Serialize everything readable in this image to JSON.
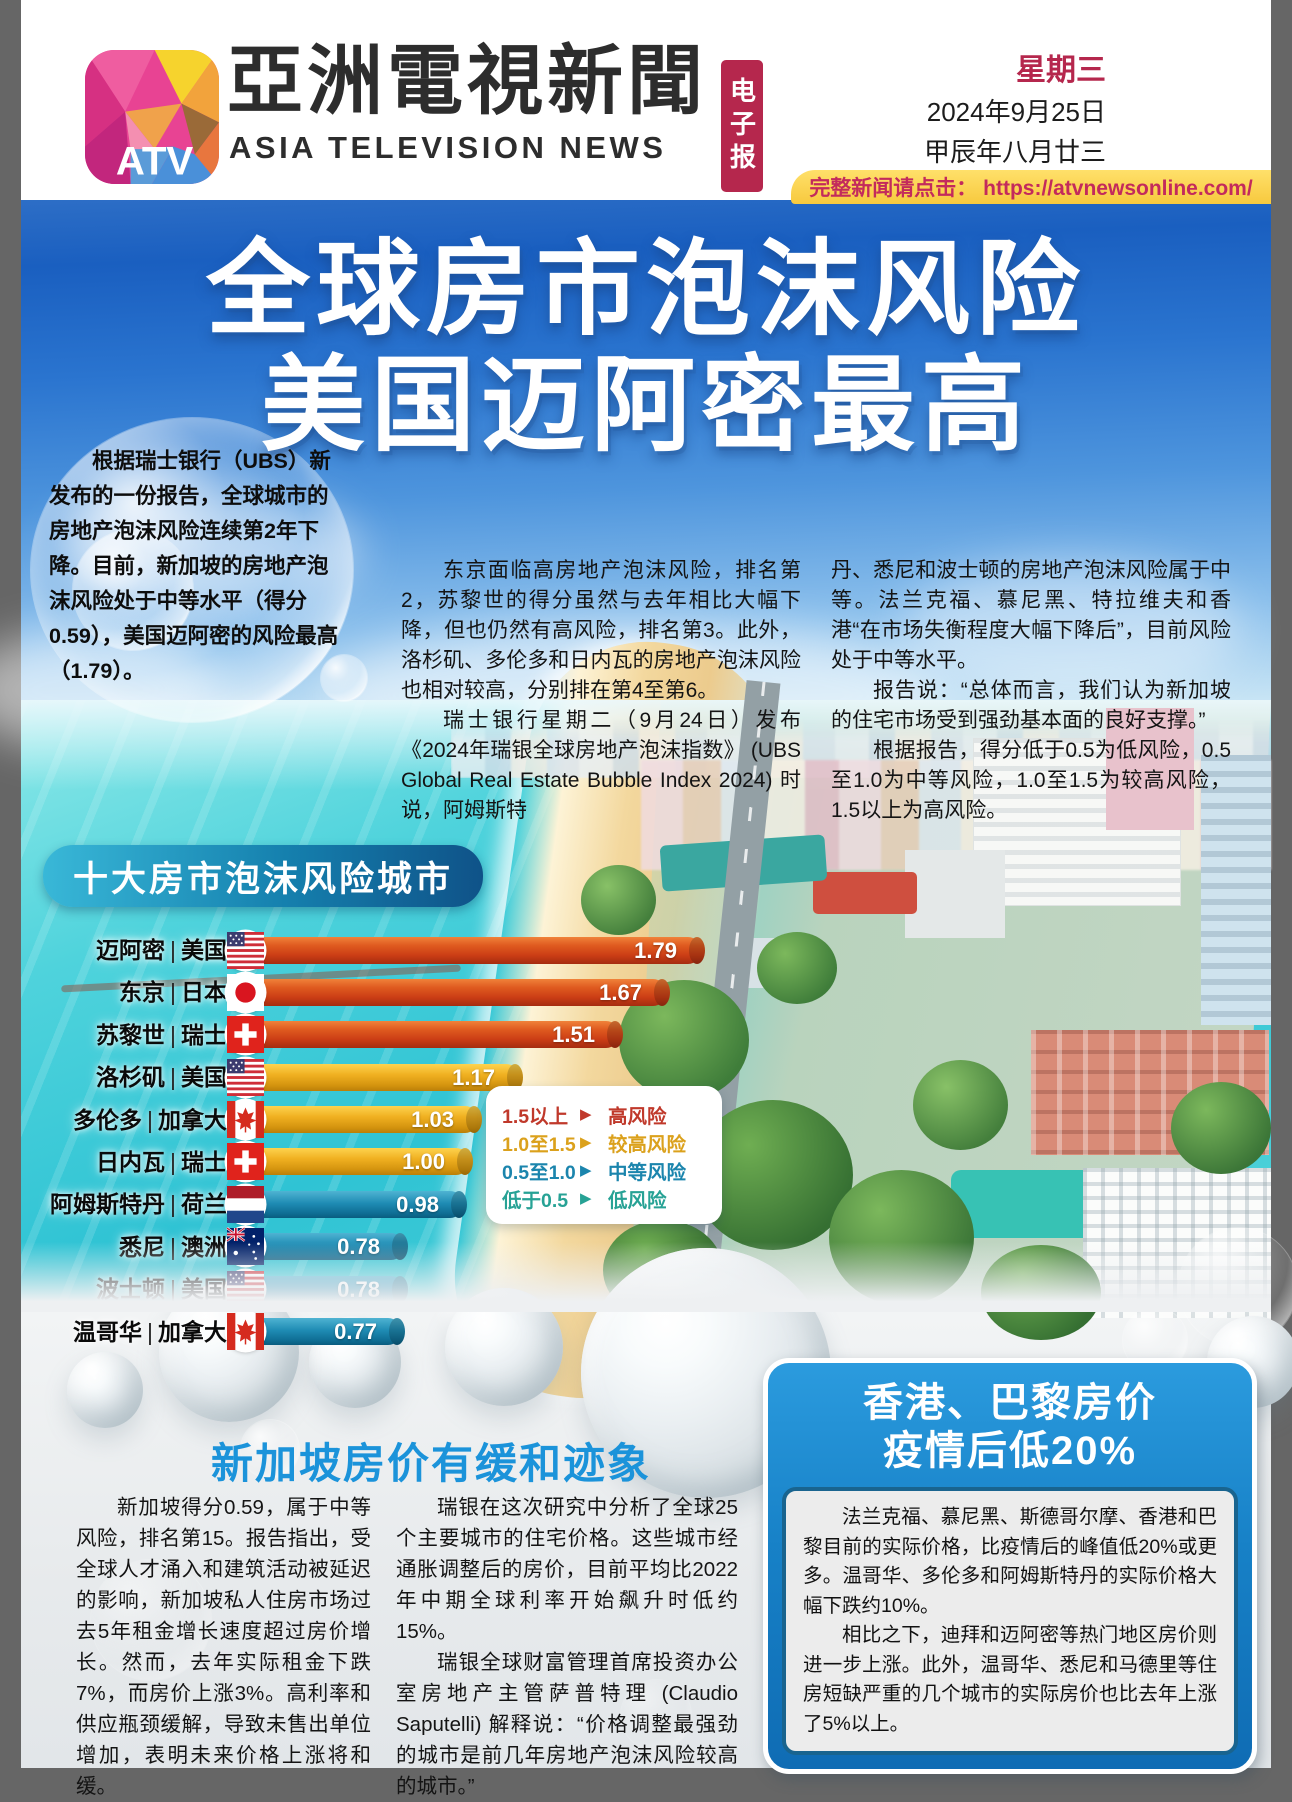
{
  "header": {
    "logo_text": "ATV",
    "title_zh": "亞洲電視新聞",
    "title_en": "ASIA TELEVISION NEWS",
    "epaper_badge": "电子报",
    "weekday": "星期三",
    "date": "2024年9月25日",
    "lunar_date": "甲辰年八月廿三",
    "link_bar": "完整新闻请点击： https://atvnewsonline.com/"
  },
  "headline": {
    "line1": "全球房市泡沫风险",
    "line2": "美国迈阿密最高"
  },
  "intro_bubble": "根据瑞士银行（UBS）新发布的一份报告，全球城市的房地产泡沫风险连续第2年下降。目前，新加坡的房地产泡沫风险处于中等水平（得分0.59），美国迈阿密的风险最高（1.79）。",
  "article1": {
    "col1": [
      "东京面临高房地产泡沫风险，排名第2，苏黎世的得分虽然与去年相比大幅下降，但也仍然有高风险，排名第3。此外，洛杉矶、多伦多和日内瓦的房地产泡沫风险也相对较高，分别排在第4至第6。",
      "瑞士银行星期二（9月24日）发布《2024年瑞银全球房地产泡沫指数》 (UBS Global Real Estate Bubble Index 2024) 时说，阿姆斯特"
    ],
    "col2": [
      "丹、悉尼和波士顿的房地产泡沫风险属于中等。法兰克福、慕尼黑、特拉维夫和香港“在市场失衡程度大幅下降后”，目前风险处于中等水平。",
      "报告说：“总体而言，我们认为新加坡的住宅市场受到强劲基本面的良好支撑。”",
      "根据报告，得分低于0.5为低风险，0.5至1.0为中等风险，1.0至1.5为较高风险，1.5以上为高风险。"
    ]
  },
  "chart_data": {
    "type": "bar",
    "orientation": "horizontal",
    "title": "十大房市泡沫风险城市",
    "categories": [
      "迈阿密",
      "东京",
      "苏黎世",
      "洛杉矶",
      "多伦多",
      "日内瓦",
      "阿姆斯特丹",
      "悉尼",
      "波士顿",
      "温哥华"
    ],
    "countries": [
      "美国",
      "日本",
      "瑞士",
      "美国",
      "加拿大",
      "瑞士",
      "荷兰",
      "澳洲",
      "美国",
      "加拿大"
    ],
    "flags": [
      "us",
      "jp",
      "ch",
      "us",
      "ca",
      "ch",
      "nl",
      "au",
      "us",
      "ca"
    ],
    "values": [
      1.79,
      1.67,
      1.51,
      1.17,
      1.03,
      1.0,
      0.98,
      0.78,
      0.78,
      0.77
    ],
    "value_labels": [
      "1.79",
      "1.67",
      "1.51",
      "1.17",
      "1.03",
      "1.00",
      "0.98",
      "0.78",
      "0.78",
      "0.77"
    ],
    "xlim": [
      0,
      2
    ],
    "risk_colors": {
      "high": "#cb3d15",
      "higher": "#f0b021",
      "medium": "#1f8cb4"
    },
    "legend": [
      {
        "range": "1.5以上",
        "label": "高风险",
        "color": "#c0392b"
      },
      {
        "range": "1.0至1.5",
        "label": "较高风险",
        "color": "#dba11c"
      },
      {
        "range": "0.5至1.0",
        "label": "中等风险",
        "color": "#1b85ad"
      },
      {
        "range": "低于0.5",
        "label": "低风险",
        "color": "#27a295"
      }
    ]
  },
  "article2": {
    "title": "新加坡房价有缓和迹象",
    "col1": [
      "新加坡得分0.59，属于中等风险，排名第15。报告指出，受全球人才涌入和建筑活动被延迟的影响，新加坡私人住房市场过去5年租金增长速度超过房价增长。然而，去年实际租金下跌7%，而房价上涨3%。高利率和供应瓶颈缓解，导致未售出单位增加，表明未来价格上涨将和缓。"
    ],
    "col2": [
      "瑞银在这次研究中分析了全球25个主要城市的住宅价格。这些城市经通胀调整后的房价，目前平均比2022年中期全球利率开始飙升时低约15%。",
      "瑞银全球财富管理首席投资办公室房地产主管萨普特理 (Claudio Saputelli) 解释说：“价格调整最强劲的城市是前几年房地产泡沫风险较高的城市。”"
    ]
  },
  "highlight_box": {
    "title_line1": "香港、巴黎房价",
    "title_line2": "疫情后低20%",
    "paras": [
      "法兰克福、慕尼黑、斯德哥尔摩、香港和巴黎目前的实际价格，比疫情后的峰值低20%或更多。温哥华、多伦多和阿姆斯特丹的实际价格大幅下跌约10%。",
      "相比之下，迪拜和迈阿密等热门地区房价则进一步上涨。此外，温哥华、悉尼和马德里等住房短缺严重的几个城市的实际房价也比去年上涨了5%以上。"
    ]
  }
}
